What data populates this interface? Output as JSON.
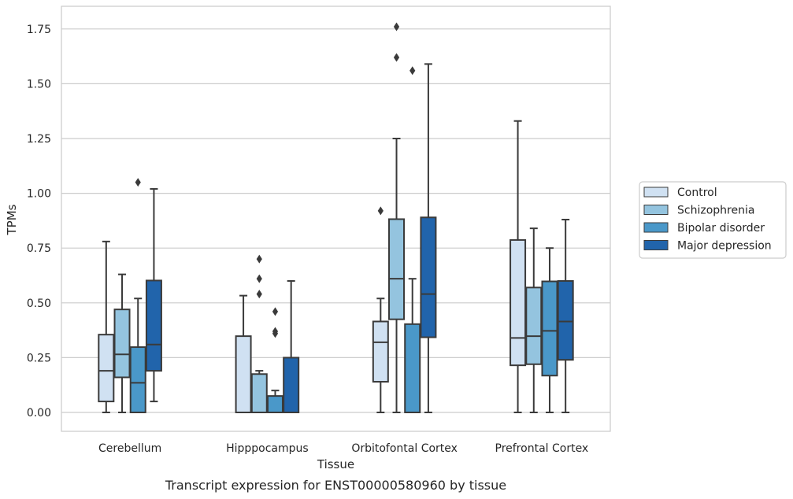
{
  "chart_data": {
    "type": "box",
    "title": "",
    "caption": "Transcript expression for ENST00000580960 by tissue",
    "xlabel": "Tissue",
    "ylabel": "TPMs",
    "ylim": [
      -0.085,
      1.85
    ],
    "yticks": [
      "0.00",
      "0.25",
      "0.50",
      "0.75",
      "1.00",
      "1.25",
      "1.50",
      "1.75"
    ],
    "ytick_values": [
      0,
      0.25,
      0.5,
      0.75,
      1.0,
      1.25,
      1.5,
      1.75
    ],
    "grid": "horizontal",
    "legend_position": "right",
    "categories": [
      "Cerebellum",
      "Hipppocampus",
      "Orbitofontal Cortex",
      "Prefrontal Cortex"
    ],
    "series": [
      {
        "name": "Control",
        "color": "#d0e1f2",
        "boxes": [
          {
            "whislo": 0.0,
            "q1": 0.05,
            "med": 0.19,
            "q3": 0.355,
            "whishi": 0.78,
            "fliers": []
          },
          {
            "whislo": 0.0,
            "q1": 0.0,
            "med": 0.0,
            "q3": 0.348,
            "whishi": 0.533,
            "fliers": []
          },
          {
            "whislo": 0.0,
            "q1": 0.14,
            "med": 0.32,
            "q3": 0.415,
            "whishi": 0.52,
            "fliers": [
              0.92
            ]
          },
          {
            "whislo": 0.0,
            "q1": 0.215,
            "med": 0.34,
            "q3": 0.787,
            "whishi": 1.33,
            "fliers": []
          }
        ]
      },
      {
        "name": "Schizophrenia",
        "color": "#94c4df",
        "boxes": [
          {
            "whislo": 0.0,
            "q1": 0.16,
            "med": 0.265,
            "q3": 0.47,
            "whishi": 0.63,
            "fliers": []
          },
          {
            "whislo": 0.0,
            "q1": 0.0,
            "med": 0.0,
            "q3": 0.175,
            "whishi": 0.19,
            "fliers": [
              0.54,
              0.61,
              0.7
            ]
          },
          {
            "whislo": 0.0,
            "q1": 0.425,
            "med": 0.61,
            "q3": 0.882,
            "whishi": 1.25,
            "fliers": [
              1.62,
              1.76
            ]
          },
          {
            "whislo": 0.0,
            "q1": 0.22,
            "med": 0.348,
            "q3": 0.57,
            "whishi": 0.84,
            "fliers": []
          }
        ]
      },
      {
        "name": "Bipolar disorder",
        "color": "#4a98c9",
        "boxes": [
          {
            "whislo": 0.0,
            "q1": 0.0,
            "med": 0.135,
            "q3": 0.298,
            "whishi": 0.52,
            "fliers": [
              1.05
            ]
          },
          {
            "whislo": 0.0,
            "q1": 0.0,
            "med": 0.0,
            "q3": 0.075,
            "whishi": 0.1,
            "fliers": [
              0.36,
              0.37,
              0.46
            ]
          },
          {
            "whislo": 0.0,
            "q1": 0.0,
            "med": 0.0,
            "q3": 0.403,
            "whishi": 0.61,
            "fliers": [
              1.56
            ]
          },
          {
            "whislo": 0.0,
            "q1": 0.168,
            "med": 0.372,
            "q3": 0.598,
            "whishi": 0.75,
            "fliers": []
          }
        ]
      },
      {
        "name": "Major depression",
        "color": "#2164ab",
        "boxes": [
          {
            "whislo": 0.05,
            "q1": 0.19,
            "med": 0.31,
            "q3": 0.602,
            "whishi": 1.02,
            "fliers": []
          },
          {
            "whislo": 0.0,
            "q1": 0.0,
            "med": 0.0,
            "q3": 0.25,
            "whishi": 0.6,
            "fliers": []
          },
          {
            "whislo": 0.0,
            "q1": 0.343,
            "med": 0.54,
            "q3": 0.89,
            "whishi": 1.59,
            "fliers": []
          },
          {
            "whislo": 0.0,
            "q1": 0.24,
            "med": 0.415,
            "q3": 0.6,
            "whishi": 0.88,
            "fliers": []
          }
        ]
      }
    ]
  }
}
